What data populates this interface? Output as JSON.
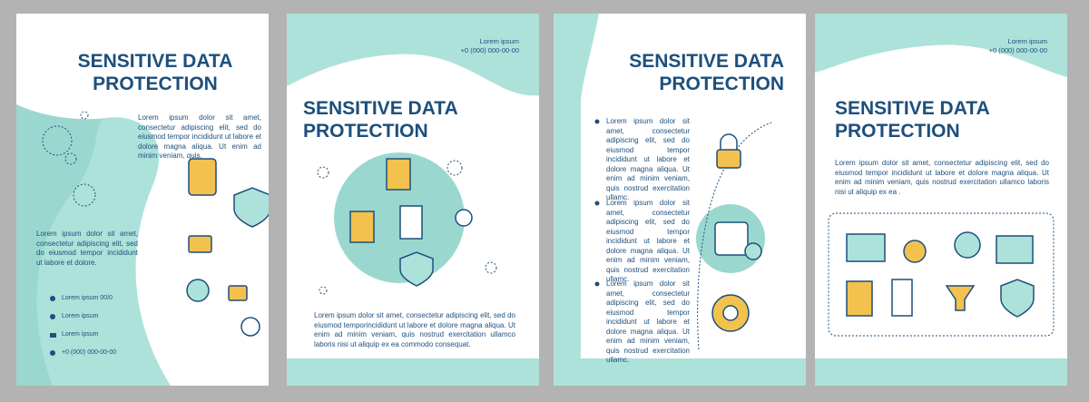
{
  "pages": [
    {
      "title": [
        "SENSITIVE DATA",
        "PROTECTION"
      ],
      "paragraphs": [
        "Lorem ipsum dolor sit amet, consectetur adipiscing elit, sed do eiusmod tempor incididunt ut labore et dolore magna aliqua. Ut enim ad minim veniam, quis.",
        "Lorem ipsum dolor sit amet, consectetur adipiscing elit, sed do eiusmod tempor incididunt ut labore et dolore."
      ],
      "contacts": [
        "Lorem ipsum 00/0",
        "Lorem ipsum",
        "Lorem ipsum",
        "+0 (000) 000-00-00"
      ]
    },
    {
      "header": [
        "Lorem ipsum",
        "+0 (000) 000-00-00"
      ],
      "title": [
        "SENSITIVE DATA",
        "PROTECTION"
      ],
      "paragraphs": [
        "Lorem ipsum dolor sit amet, consectetur adipiscing elit, sed do eiusmod temporincididunt ut labore et dolore magna aliqua. Ut enim ad minim veniam, quis nostrud exercitation ullamco laboris nisi ut aliquip ex ea commodo consequat."
      ]
    },
    {
      "title": [
        "SENSITIVE DATA",
        "PROTECTION"
      ],
      "paragraphs": [
        "Lorem ipsum dolor sit amet, consectetur adipiscing elit, sed do eiusmod tempor incididunt ut labore et dolore magna aliqua. Ut enim ad minim veniam, quis nostrud exercitation ullamc.",
        "Lorem ipsum dolor sit amet, consectetur adipiscing elit, sed do eiusmod tempor incididunt ut labore et dolore magna aliqua. Ut enim ad minim veniam, quis nostrud exercitation ullamc.",
        "Lorem ipsum dolor sit amet, consectetur adipiscing elit, sed do eiusmod tempor incididunt ut labore et dolore magna aliqua. Ut enim ad minim veniam, quis nostrud exercitation ullamc."
      ]
    },
    {
      "header": [
        "Lorem ipsum",
        "+0 (000) 000-00-00"
      ],
      "title": [
        "SENSITIVE DATA",
        "PROTECTION"
      ],
      "paragraphs": [
        "Lorem ipsum dolor sit amet, consectetur adipiscing elit, sed do eiusmod tempor incididunt ut labore et dolore magna aliqua. Ut enim ad minim veniam, quis nostrud exercitation ullamco laboris nisi ut aliquip ex ea ."
      ]
    }
  ]
}
